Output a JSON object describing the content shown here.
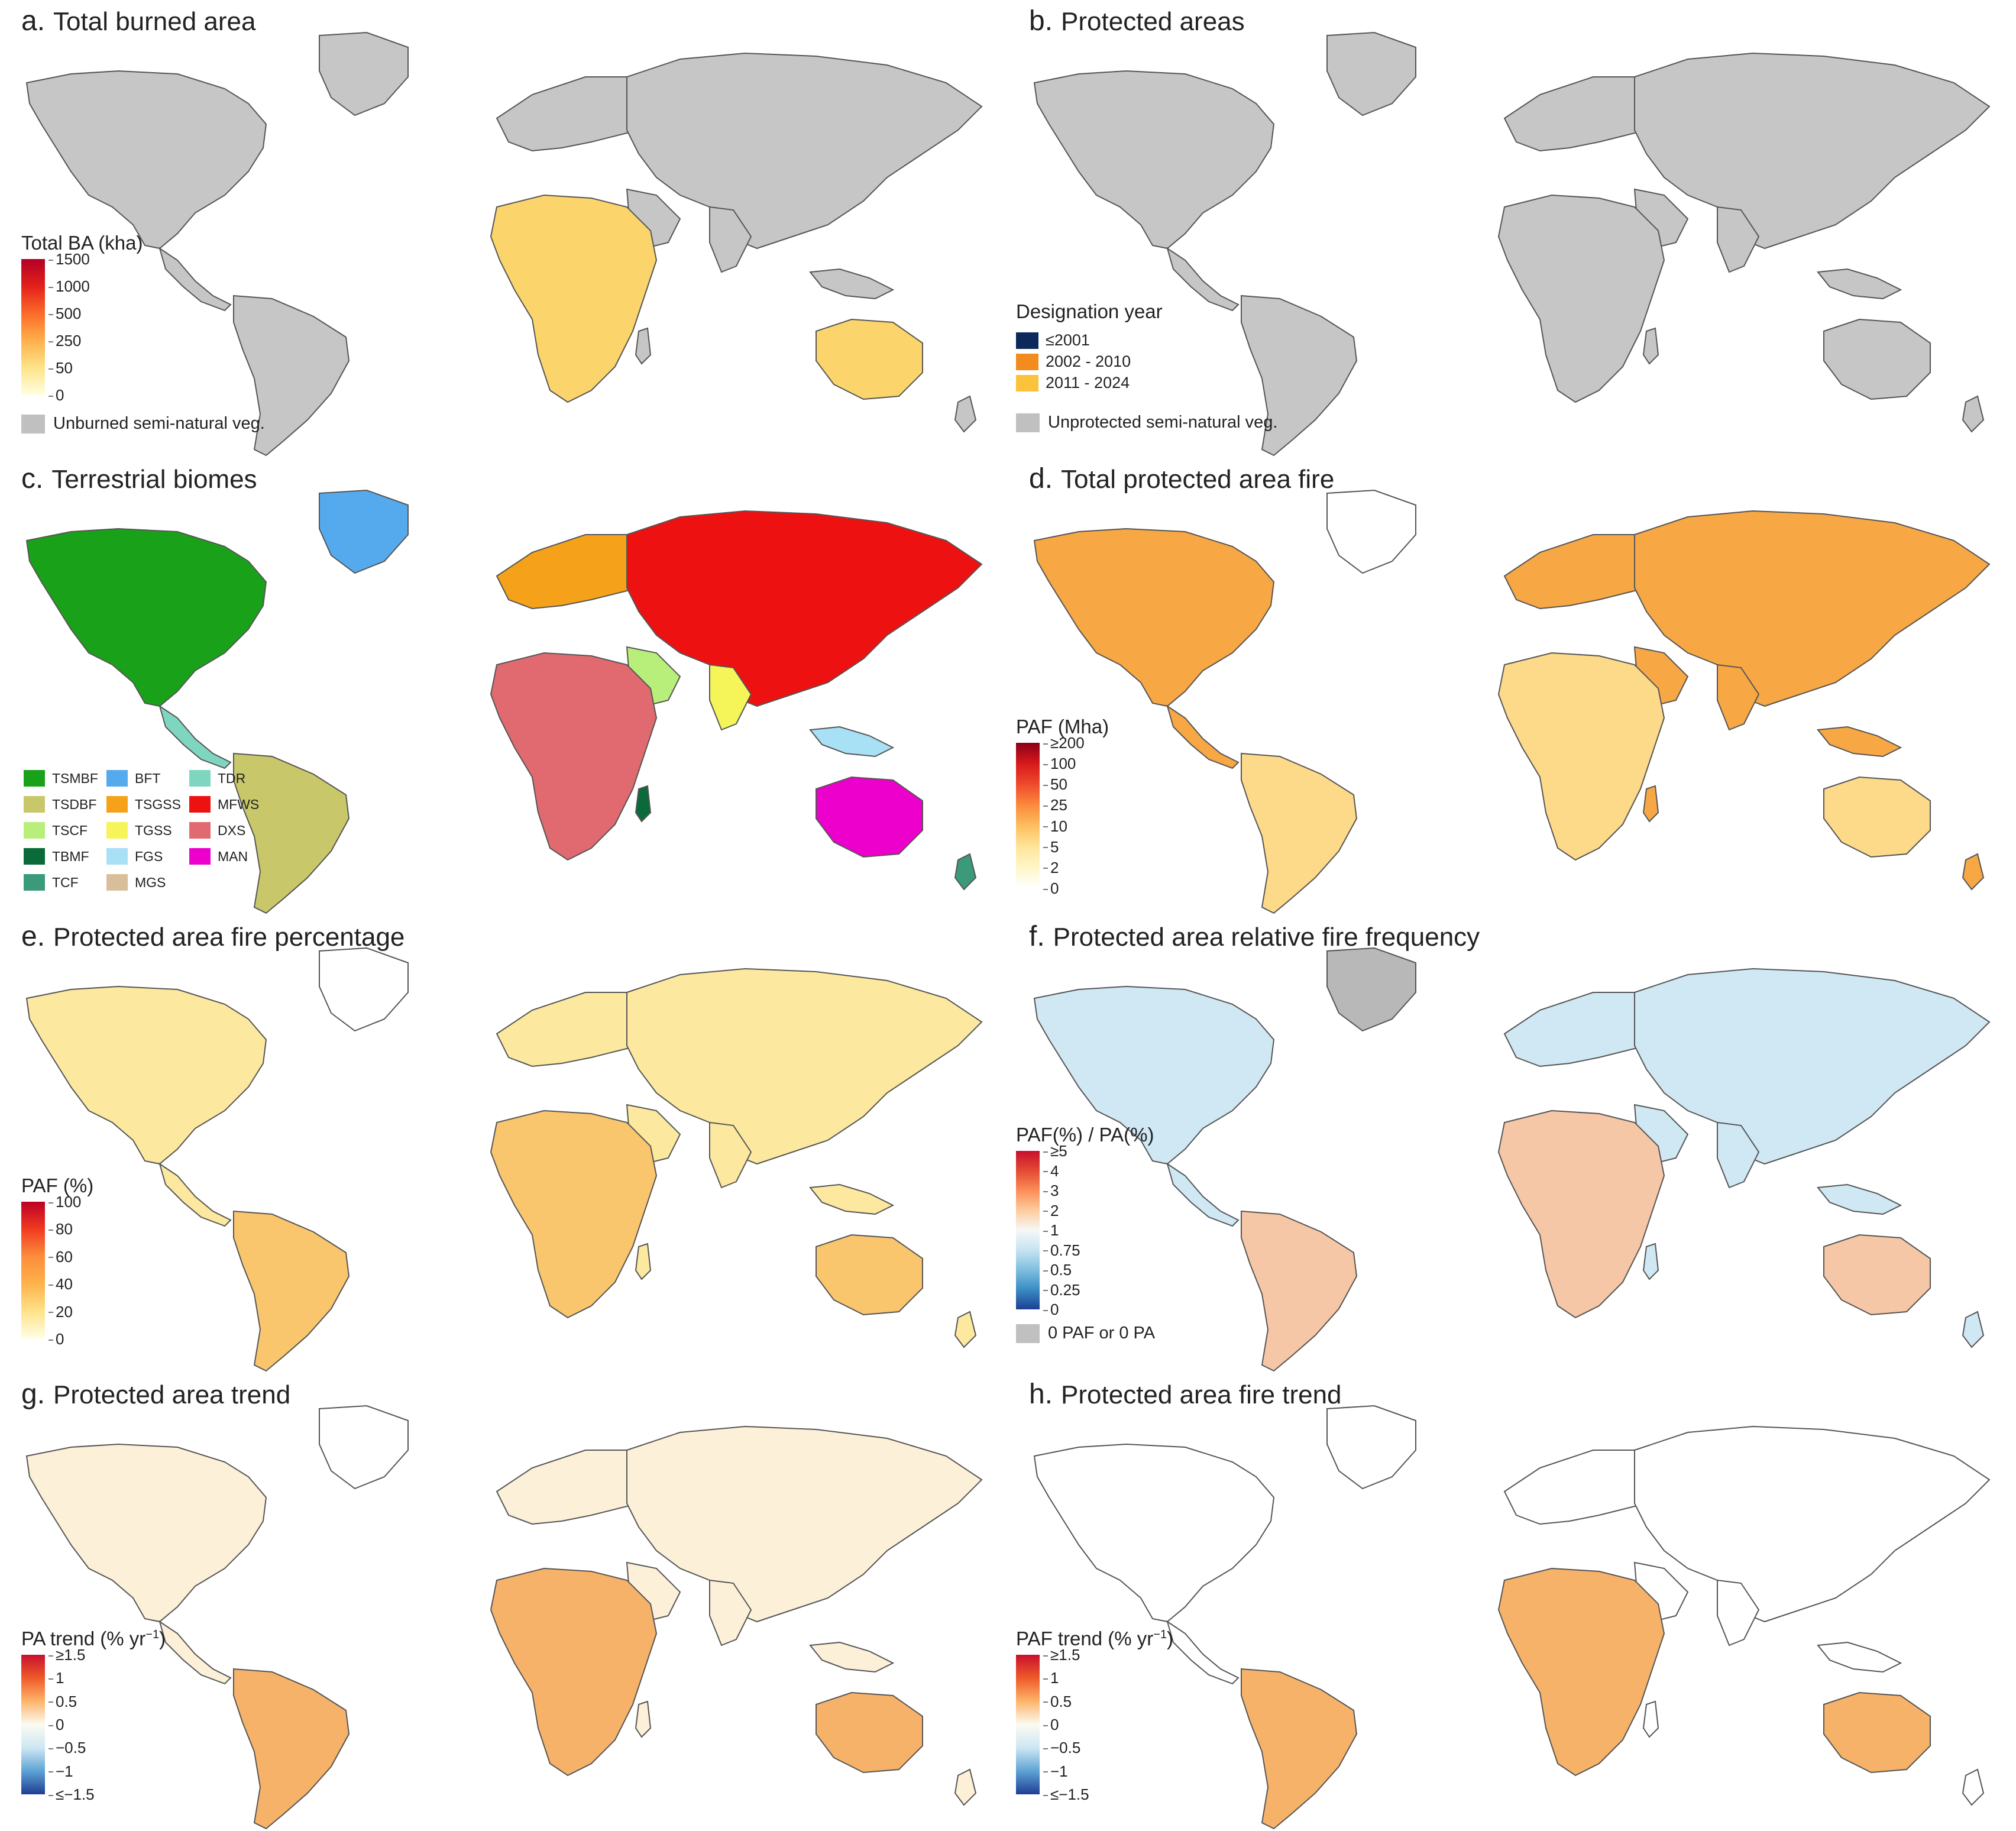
{
  "panels": {
    "a": {
      "letter": "a.",
      "title": "Total burned area",
      "legend_title": "Total BA (kha)",
      "ticks": [
        "1500",
        "1000",
        "500",
        "250",
        "50",
        "0"
      ],
      "gradient": [
        "#b30024",
        "#e3201b",
        "#fc6b2a",
        "#fdb04b",
        "#fde48a",
        "#ffffe0"
      ],
      "land_color": "#c6c6c6",
      "fill_color": "#fbd56c",
      "extra_note": "Unburned semi-natural veg.",
      "note_color": "#c0c0c0"
    },
    "b": {
      "letter": "b.",
      "title": "Protected areas",
      "legend_title": "Designation year",
      "categories": [
        {
          "label": "≤2001",
          "color": "#0b2a5b"
        },
        {
          "label": "2002 - 2010",
          "color": "#f28c1e"
        },
        {
          "label": "2011 - 2024",
          "color": "#fbc23b"
        }
      ],
      "land_color": "#c6c6c6",
      "extra_note": "Unprotected semi-natural veg.",
      "note_color": "#c0c0c0"
    },
    "c": {
      "letter": "c.",
      "title": "Terrestrial biomes",
      "biomes": [
        {
          "code": "TSMBF",
          "color": "#1aa11a"
        },
        {
          "code": "TSDBF",
          "color": "#c8c86a"
        },
        {
          "code": "TSCF",
          "color": "#b8ef7a"
        },
        {
          "code": "TBMF",
          "color": "#0a6a3a"
        },
        {
          "code": "TCF",
          "color": "#3a9a7a"
        },
        {
          "code": "BFT",
          "color": "#55aaee"
        },
        {
          "code": "TSGSS",
          "color": "#f5a21a"
        },
        {
          "code": "TGSS",
          "color": "#f5f55a"
        },
        {
          "code": "FGS",
          "color": "#a8e0f5"
        },
        {
          "code": "MGS",
          "color": "#d8bf9a"
        },
        {
          "code": "TDR",
          "color": "#7fd6c0"
        },
        {
          "code": "MFWS",
          "color": "#ee1111"
        },
        {
          "code": "DXS",
          "color": "#e06a70"
        },
        {
          "code": "MAN",
          "color": "#ee00cc"
        }
      ],
      "land_color": "#5fcfbf"
    },
    "d": {
      "letter": "d.",
      "title": "Total protected area fire",
      "legend_title": "PAF (Mha)",
      "ticks": [
        "≥200",
        "100",
        "50",
        "25",
        "10",
        "5",
        "2",
        "0"
      ],
      "gradient": [
        "#8b0018",
        "#d7191c",
        "#ef4a2b",
        "#fb8a3c",
        "#fdbf5f",
        "#fee59a",
        "#fff6c8",
        "#ffffff"
      ],
      "land_color": "#f7a744",
      "fill_color": "#fdd98a"
    },
    "e": {
      "letter": "e.",
      "title": "Protected area fire percentage",
      "legend_title": "PAF (%)",
      "ticks": [
        "100",
        "80",
        "60",
        "40",
        "20",
        "0"
      ],
      "gradient": [
        "#bd0026",
        "#f03b20",
        "#fd8d3c",
        "#feb24c",
        "#fee38a",
        "#ffffe8"
      ],
      "land_color": "#fde8a0",
      "fill_color": "#f9c66e"
    },
    "f": {
      "letter": "f.",
      "title": "Protected area relative fire frequency",
      "legend_title": "PAF(%) / PA(%)",
      "ticks": [
        "≥5",
        "4",
        "3",
        "2",
        "1",
        "0.75",
        "0.5",
        "0.25",
        "0"
      ],
      "gradient": [
        "#c8102e",
        "#e34a33",
        "#fc8d59",
        "#fdcc9e",
        "#f7f7f7",
        "#c6e4f1",
        "#7fbfe0",
        "#3a8cc4",
        "#1d3f94"
      ],
      "land_color": "#cfe8f3",
      "fill_color": "#f6c7a6",
      "extra_note": "0 PAF or 0 PA",
      "note_color": "#c0c0c0"
    },
    "g": {
      "letter": "g.",
      "title": "Protected area trend",
      "legend_title": "PA trend (% yr",
      "legend_sup": "−1",
      "legend_close": ")",
      "ticks": [
        "≥1.5",
        "1",
        "0.5",
        "0",
        "−0.5",
        "−1",
        "≤−1.5"
      ],
      "gradient": [
        "#c8102e",
        "#ef5a2a",
        "#fdb46a",
        "#fbfbf2",
        "#cde7f3",
        "#5ea3d4",
        "#1f3d94"
      ],
      "land_color": "#fdf0d8",
      "fill_color": "#f7b26a"
    },
    "h": {
      "letter": "h.",
      "title": "Protected area fire trend",
      "legend_title": "PAF trend (% yr",
      "legend_sup": "−1",
      "legend_close": ")",
      "ticks": [
        "≥1.5",
        "1",
        "0.5",
        "0",
        "−0.5",
        "−1",
        "≤−1.5"
      ],
      "gradient": [
        "#c8102e",
        "#ef5a2a",
        "#fdb46a",
        "#fbfbf2",
        "#cde7f3",
        "#5ea3d4",
        "#1f3d94"
      ],
      "land_color": "#ffffff",
      "fill_color": "#f7b26a"
    }
  }
}
